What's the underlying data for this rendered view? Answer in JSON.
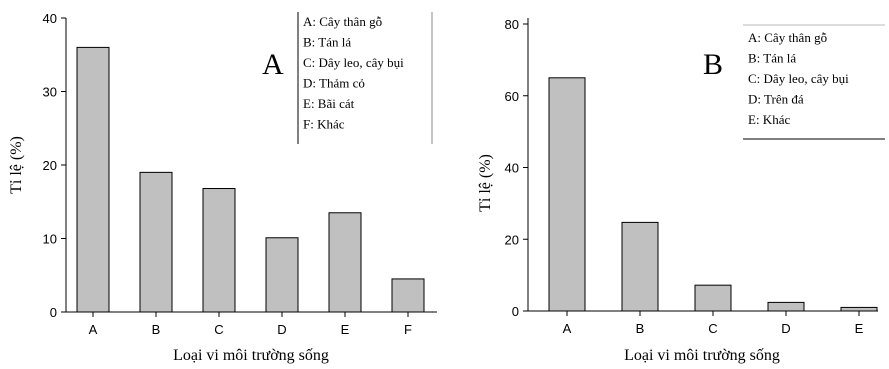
{
  "chart_data": [
    {
      "type": "bar",
      "panel_label": "A",
      "categories": [
        "A",
        "B",
        "C",
        "D",
        "E",
        "F"
      ],
      "values": [
        36,
        19,
        16.8,
        10.1,
        13.5,
        4.5
      ],
      "xlabel": "Loại vi môi trường sống",
      "ylabel": "Tỉ lệ (%)",
      "ylim": [
        0,
        40
      ],
      "yticks": [
        "0",
        "10",
        "20",
        "30",
        "40"
      ],
      "legend": [
        "A: Cây thân gỗ",
        "B: Tán lá",
        "C: Dây leo, cây bụi",
        "D: Thảm cỏ",
        "E: Bãi cát",
        "F: Khác"
      ],
      "legend_position": "top-right",
      "bar_color": "#c0c0c0"
    },
    {
      "type": "bar",
      "panel_label": "B",
      "categories": [
        "A",
        "B",
        "C",
        "D",
        "E"
      ],
      "values": [
        65,
        24.7,
        7.2,
        2.4,
        1
      ],
      "xlabel": "Loại vi môi trường sống",
      "ylabel": "Tỉ lệ (%)",
      "ylim": [
        0,
        80
      ],
      "yticks": [
        "0",
        "20",
        "40",
        "60",
        "80"
      ],
      "legend": [
        "A: Cây thân gỗ",
        "B: Tán lá",
        "C: Dây leo, cây bụi",
        "D: Trên đá",
        "E: Khác"
      ],
      "legend_position": "top-right",
      "bar_color": "#c0c0c0"
    }
  ]
}
